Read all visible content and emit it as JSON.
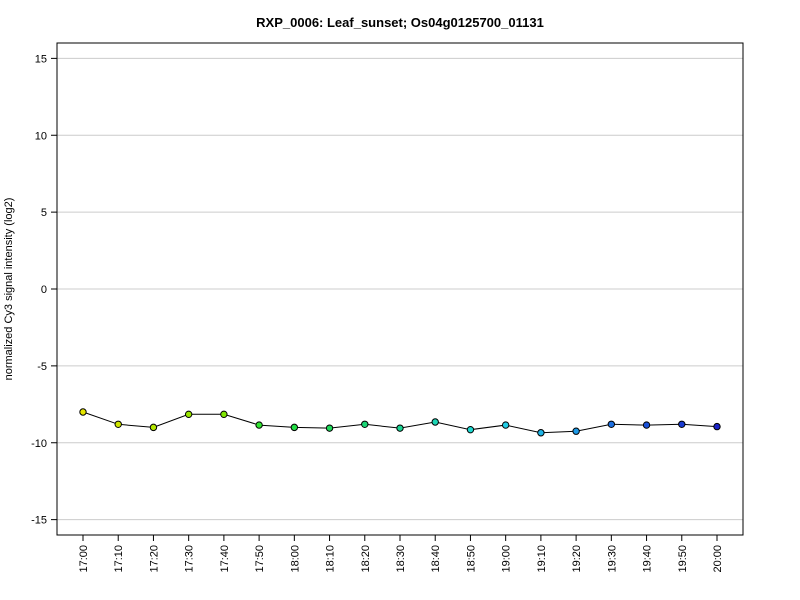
{
  "chart_data": {
    "type": "line",
    "title": "RXP_0006: Leaf_sunset; Os04g0125700_01131",
    "xlabel": "",
    "ylabel": "normalized Cy3 signal intensity (log2)",
    "ylim": [
      -16,
      16
    ],
    "yticks": [
      -15,
      -10,
      -5,
      0,
      5,
      10,
      15
    ],
    "grid": true,
    "categories": [
      "17:00",
      "17:10",
      "17:20",
      "17:30",
      "17:40",
      "17:50",
      "18:00",
      "18:10",
      "18:20",
      "18:30",
      "18:40",
      "18:50",
      "19:00",
      "19:10",
      "19:20",
      "19:30",
      "19:40",
      "19:50",
      "20:00"
    ],
    "values": [
      -8.0,
      -8.8,
      -9.0,
      -8.15,
      -8.15,
      -8.85,
      -9.0,
      -9.05,
      -8.8,
      -9.05,
      -8.65,
      -9.15,
      -8.85,
      -9.35,
      -9.25,
      -8.8,
      -8.85,
      -8.8,
      -8.95
    ],
    "point_colors": [
      "#e6e600",
      "#cfe600",
      "#b3e600",
      "#99e600",
      "#7fe600",
      "#33e633",
      "#22dd44",
      "#1ed95a",
      "#1ad575",
      "#19d493",
      "#1dd5b5",
      "#1ed8d0",
      "#22cde6",
      "#1eb4e6",
      "#1d99e6",
      "#1c6fe0",
      "#1a52d9",
      "#1a3bd2",
      "#1a23c8"
    ],
    "line_color": "#000000"
  }
}
